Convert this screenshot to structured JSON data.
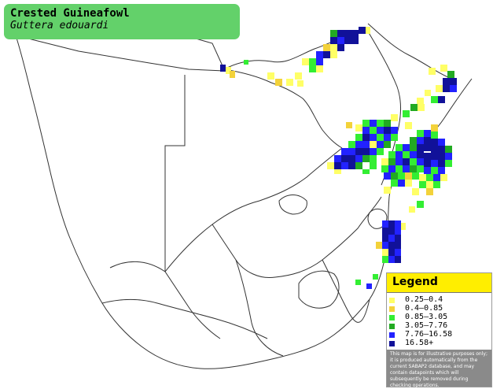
{
  "title": "Crested Guineafowl",
  "subtitle": "Guttera edouardi",
  "colors": {
    "title_box": "#63d16a",
    "border": "#333333",
    "land": "#ffffff"
  },
  "legend": {
    "title": "Legend",
    "items": [
      {
        "label": "0.25–0.4",
        "color": "#ffff66"
      },
      {
        "label": "0.4–0.85",
        "color": "#f3d23a"
      },
      {
        "label": "0.85–3.05",
        "color": "#33ee33"
      },
      {
        "label": "3.05–7.76",
        "color": "#22aa22"
      },
      {
        "label": "7.76–16.58",
        "color": "#2222ff"
      },
      {
        "label": "16.58+",
        "color": "#111199"
      }
    ],
    "disclaimer": "This map is for illustrative purposes only; it is produced automatically from the current SABAP2 database, and may contain datapoints which will subsequently be removed during checking operations."
  }
}
